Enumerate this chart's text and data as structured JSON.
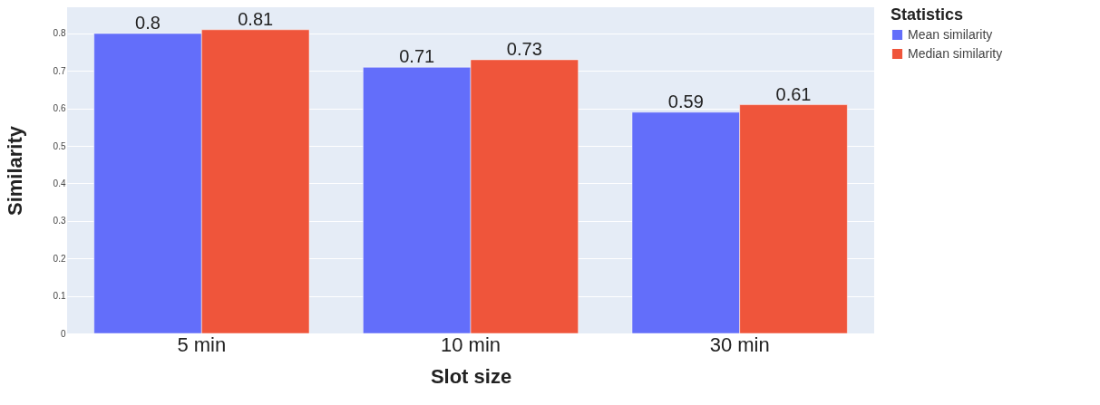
{
  "chart_data": {
    "type": "bar",
    "xlabel": "Slot size",
    "ylabel": "Similarity",
    "legend_title": "Statistics",
    "categories": [
      "5 min",
      "10 min",
      "30 min"
    ],
    "series": [
      {
        "name": "Mean similarity",
        "color": "#636efa",
        "values": [
          0.8,
          0.71,
          0.59
        ]
      },
      {
        "name": "Median similarity",
        "color": "#ef553b",
        "values": [
          0.81,
          0.73,
          0.61
        ]
      }
    ],
    "ylim": [
      0,
      0.87
    ],
    "yticks": [
      0,
      0.1,
      0.2,
      0.3,
      0.4,
      0.5,
      0.6,
      0.7,
      0.8
    ],
    "grid": "y",
    "legend": "top right",
    "data_labels": true
  }
}
